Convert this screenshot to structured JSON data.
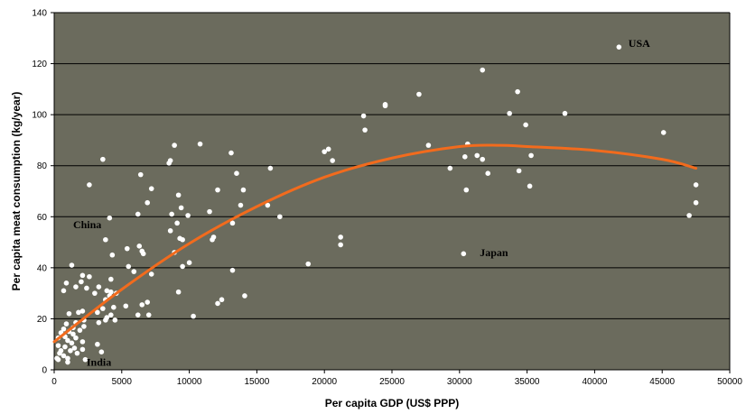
{
  "chart_data": {
    "type": "scatter",
    "title": "",
    "xlabel": "Per capita GDP (US$ PPP)",
    "ylabel": "Per capita meat consumption (kg/year)",
    "xlim": [
      0,
      50000
    ],
    "ylim": [
      0,
      140
    ],
    "xticks": [
      0,
      5000,
      10000,
      15000,
      20000,
      25000,
      30000,
      35000,
      40000,
      45000,
      50000
    ],
    "yticks": [
      0,
      20,
      40,
      60,
      80,
      100,
      120,
      140
    ],
    "grid": "horizontal",
    "legend": "none",
    "colors": {
      "background": "#6b6b5d",
      "points": "#ffffff",
      "trendline": "#f26b1d",
      "gridline": "#000000"
    },
    "annotations": [
      {
        "text": "USA",
        "x": 42500,
        "y": 128
      },
      {
        "text": "China",
        "x": 1400,
        "y": 57
      },
      {
        "text": "Japan",
        "x": 31500,
        "y": 46
      },
      {
        "text": "India",
        "x": 2400,
        "y": 3
      }
    ],
    "trendline": {
      "type": "polynomial",
      "points": [
        [
          0,
          11
        ],
        [
          5000,
          31.5
        ],
        [
          10000,
          49.5
        ],
        [
          15000,
          64
        ],
        [
          20000,
          75.5
        ],
        [
          25000,
          83
        ],
        [
          30000,
          87.5
        ],
        [
          33000,
          88
        ],
        [
          35000,
          87.5
        ],
        [
          40000,
          86
        ],
        [
          45000,
          82.5
        ],
        [
          47500,
          79
        ]
      ]
    },
    "points": [
      [
        41800,
        126.5
      ],
      [
        31700,
        117.5
      ],
      [
        34300,
        109
      ],
      [
        27000,
        108
      ],
      [
        24500,
        104
      ],
      [
        24500,
        103.5
      ],
      [
        22900,
        99.5
      ],
      [
        37800,
        100.5
      ],
      [
        33700,
        100.5
      ],
      [
        34900,
        96
      ],
      [
        23000,
        94
      ],
      [
        45100,
        93
      ],
      [
        30600,
        88.5
      ],
      [
        27700,
        88
      ],
      [
        20300,
        86.5
      ],
      [
        20000,
        85.5
      ],
      [
        31700,
        82.5
      ],
      [
        30400,
        83.5
      ],
      [
        31300,
        84
      ],
      [
        35300,
        84
      ],
      [
        20600,
        82
      ],
      [
        16000,
        79
      ],
      [
        29300,
        79
      ],
      [
        32100,
        77
      ],
      [
        34400,
        78
      ],
      [
        35200,
        72
      ],
      [
        30500,
        70.5
      ],
      [
        47500,
        72.5
      ],
      [
        47500,
        65.5
      ],
      [
        47000,
        60.5
      ],
      [
        21200,
        52
      ],
      [
        21200,
        49
      ],
      [
        18800,
        41.5
      ],
      [
        30300,
        45.5
      ],
      [
        16700,
        60
      ],
      [
        15800,
        64.5
      ],
      [
        10800,
        88.5
      ],
      [
        8900,
        88
      ],
      [
        8600,
        82
      ],
      [
        8500,
        81
      ],
      [
        13100,
        85
      ],
      [
        3600,
        82.5
      ],
      [
        13500,
        77
      ],
      [
        6400,
        76.5
      ],
      [
        7200,
        71
      ],
      [
        2600,
        72.5
      ],
      [
        14000,
        70.5
      ],
      [
        12100,
        70.5
      ],
      [
        9200,
        68.5
      ],
      [
        6900,
        65.5
      ],
      [
        13800,
        64.5
      ],
      [
        9400,
        63.5
      ],
      [
        8700,
        61
      ],
      [
        6200,
        61
      ],
      [
        11500,
        62
      ],
      [
        4100,
        59.5
      ],
      [
        9900,
        60.5
      ],
      [
        9100,
        57.5
      ],
      [
        13200,
        57.5
      ],
      [
        8600,
        54.5
      ],
      [
        9300,
        51.5
      ],
      [
        11800,
        52
      ],
      [
        11700,
        51
      ],
      [
        3800,
        51
      ],
      [
        6300,
        48.5
      ],
      [
        6500,
        46.5
      ],
      [
        6600,
        45.5
      ],
      [
        5400,
        47.5
      ],
      [
        4300,
        45
      ],
      [
        9500,
        51
      ],
      [
        8900,
        46
      ],
      [
        10000,
        42
      ],
      [
        9500,
        40.5
      ],
      [
        13200,
        39
      ],
      [
        7200,
        37.5
      ],
      [
        5500,
        40.5
      ],
      [
        5900,
        38.5
      ],
      [
        6500,
        25.5
      ],
      [
        9200,
        30.5
      ],
      [
        14100,
        29
      ],
      [
        12400,
        27.5
      ],
      [
        12100,
        26
      ],
      [
        6900,
        26.5
      ],
      [
        7000,
        21.5
      ],
      [
        10300,
        21
      ],
      [
        6200,
        21.5
      ],
      [
        1300,
        41
      ],
      [
        4200,
        35.5
      ],
      [
        2100,
        37
      ],
      [
        2600,
        36.5
      ],
      [
        900,
        34
      ],
      [
        2000,
        34.5
      ],
      [
        1600,
        32.5
      ],
      [
        2400,
        32
      ],
      [
        3300,
        32.5
      ],
      [
        3900,
        31
      ],
      [
        4200,
        30.5
      ],
      [
        700,
        31
      ],
      [
        3000,
        30
      ],
      [
        4600,
        30
      ],
      [
        4100,
        29
      ],
      [
        3800,
        27.5
      ],
      [
        5300,
        25
      ],
      [
        4400,
        24.5
      ],
      [
        3600,
        24
      ],
      [
        3200,
        22.5
      ],
      [
        1800,
        22.5
      ],
      [
        2100,
        23
      ],
      [
        1100,
        22
      ],
      [
        4200,
        21.5
      ],
      [
        3900,
        20.5
      ],
      [
        4500,
        19.5
      ],
      [
        3800,
        19.5
      ],
      [
        3300,
        18.5
      ],
      [
        2200,
        19.5
      ],
      [
        1600,
        18.5
      ],
      [
        900,
        18
      ],
      [
        2200,
        17
      ],
      [
        1400,
        16.5
      ],
      [
        700,
        16
      ],
      [
        1900,
        15.5
      ],
      [
        1100,
        15
      ],
      [
        500,
        14.5
      ],
      [
        1400,
        14
      ],
      [
        800,
        13
      ],
      [
        1600,
        12.5
      ],
      [
        300,
        12.5
      ],
      [
        1000,
        11.5
      ],
      [
        2100,
        11
      ],
      [
        1300,
        10.5
      ],
      [
        300,
        9.5
      ],
      [
        800,
        9
      ],
      [
        1500,
        8.5
      ],
      [
        2100,
        8
      ],
      [
        500,
        7.5
      ],
      [
        1200,
        7.5
      ],
      [
        400,
        6.5
      ],
      [
        1700,
        6.5
      ],
      [
        3200,
        10
      ],
      [
        3500,
        7
      ],
      [
        700,
        5.5
      ],
      [
        200,
        4.5
      ],
      [
        1000,
        4.5
      ],
      [
        300,
        4
      ],
      [
        2300,
        4
      ],
      [
        1000,
        3
      ]
    ]
  }
}
